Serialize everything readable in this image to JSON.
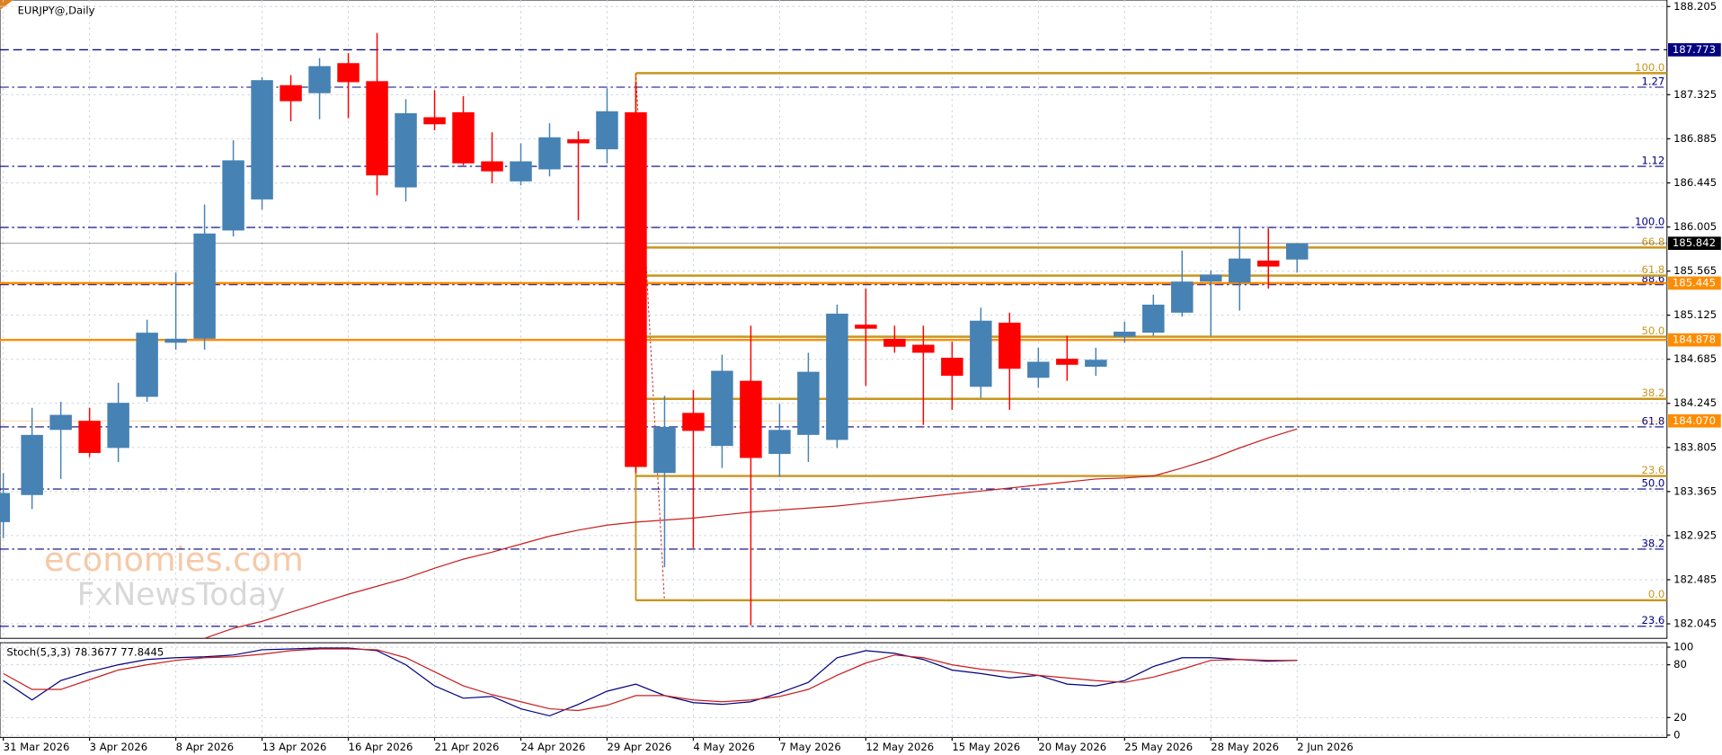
{
  "chart_data": {
    "type": "candlestick",
    "title": "EURJPY@,Daily",
    "categories": [
      "31 Mar 2026",
      null,
      null,
      "3 Apr 2026",
      null,
      null,
      "8 Apr 2026",
      null,
      null,
      "13 Apr 2026",
      null,
      null,
      "16 Apr 2026",
      null,
      null,
      "21 Apr 2026",
      null,
      null,
      "24 Apr 2026",
      null,
      null,
      "29 Apr 2026",
      null,
      null,
      "4 May 2026",
      null,
      null,
      "7 May 2026",
      null,
      null,
      "12 May 2026",
      null,
      null,
      "15 May 2026",
      null,
      null,
      "20 May 2026",
      null,
      null,
      "25 May 2026",
      null,
      null,
      "28 May 2026",
      null,
      null,
      "2 Jun 2026"
    ],
    "open": [
      183.06,
      183.33,
      183.98,
      184.07,
      183.8,
      184.31,
      184.85,
      184.89,
      185.97,
      186.28,
      187.42,
      187.34,
      187.64,
      187.46,
      186.4,
      187.1,
      187.15,
      186.66,
      186.46,
      186.58,
      186.88,
      186.78,
      187.15,
      183.55,
      184.15,
      183.82,
      184.47,
      183.74,
      183.93,
      183.88,
      185.03,
      184.89,
      184.83,
      184.7,
      184.41,
      185.05,
      184.5,
      184.69,
      184.61,
      184.91,
      184.95,
      185.15,
      185.46,
      185.45,
      185.67,
      185.68
    ],
    "high": [
      183.55,
      184.2,
      184.26,
      184.2,
      184.45,
      185.08,
      185.55,
      186.23,
      186.87,
      187.5,
      187.52,
      187.69,
      187.74,
      187.94,
      187.28,
      187.37,
      187.31,
      186.95,
      186.84,
      187.04,
      186.96,
      187.39,
      187.45,
      184.32,
      184.38,
      184.73,
      185.02,
      184.24,
      184.75,
      185.23,
      185.39,
      185.02,
      185.02,
      184.86,
      185.2,
      185.15,
      184.8,
      184.92,
      184.8,
      185.06,
      185.33,
      185.77,
      185.57,
      185.99,
      185.99,
      185.84
    ],
    "low": [
      182.9,
      183.19,
      183.49,
      183.71,
      183.66,
      184.26,
      184.78,
      184.78,
      185.91,
      186.18,
      187.06,
      187.08,
      187.09,
      186.32,
      186.26,
      186.97,
      186.62,
      186.44,
      186.42,
      186.51,
      186.07,
      186.64,
      183.55,
      182.61,
      182.8,
      183.6,
      182.03,
      183.51,
      183.66,
      183.8,
      184.42,
      184.75,
      184.03,
      184.18,
      184.3,
      184.18,
      184.4,
      184.47,
      184.52,
      184.85,
      184.92,
      185.11,
      184.92,
      185.17,
      185.39,
      185.55
    ],
    "close": [
      183.35,
      183.93,
      184.13,
      183.75,
      184.25,
      184.95,
      184.89,
      185.94,
      186.67,
      187.47,
      187.26,
      187.61,
      187.45,
      186.52,
      187.14,
      187.03,
      186.64,
      186.56,
      186.66,
      186.9,
      186.84,
      187.16,
      183.61,
      184.01,
      183.97,
      184.57,
      183.7,
      183.98,
      184.56,
      185.14,
      184.99,
      184.81,
      184.75,
      184.52,
      185.07,
      184.59,
      184.66,
      184.63,
      184.68,
      184.96,
      185.23,
      185.46,
      185.53,
      185.69,
      185.61,
      185.84
    ],
    "up_color": "#4682b4",
    "down_color": "#ff0000",
    "ma": {
      "color": "#c81e1e",
      "values": [
        null,
        null,
        null,
        null,
        null,
        null,
        null,
        181.9,
        182.0,
        182.07,
        182.16,
        182.25,
        182.34,
        182.42,
        182.5,
        182.6,
        182.69,
        182.76,
        182.84,
        182.92,
        182.98,
        183.03,
        183.06,
        183.08,
        183.1,
        183.13,
        183.16,
        183.18,
        183.2,
        183.22,
        183.25,
        183.28,
        183.31,
        183.34,
        183.37,
        183.4,
        183.43,
        183.46,
        183.49,
        183.5,
        183.52,
        183.6,
        183.69,
        183.8,
        183.9,
        183.99
      ]
    },
    "ylim": [
      181.9,
      188.27
    ],
    "yticks": [
      188.205,
      187.325,
      186.885,
      186.445,
      186.005,
      185.565,
      185.125,
      184.685,
      184.245,
      183.805,
      183.365,
      182.925,
      182.485,
      182.045
    ],
    "grid": true,
    "price_levels": [
      {
        "value": 187.773,
        "label": "187.773",
        "color": "#000080",
        "style": "dashed"
      },
      {
        "value": 185.842,
        "label": "185.842",
        "color": "#000000",
        "style": "thin"
      },
      {
        "value": 185.445,
        "label": "185.445",
        "color": "#ff8c00",
        "style": "solid"
      },
      {
        "value": 184.878,
        "label": "184.878",
        "color": "#ff8c00",
        "style": "solid"
      },
      {
        "value": 184.07,
        "label": "184.070",
        "color": "#ff8c00",
        "style": "thin"
      }
    ],
    "fib_navy": {
      "color": "#000080",
      "levels": [
        {
          "value": 187.4,
          "label": "1.27"
        },
        {
          "value": 186.61,
          "label": "1.12"
        },
        {
          "value": 186.0,
          "label": "100.0"
        },
        {
          "value": 185.43,
          "label": "88.6"
        },
        {
          "value": 184.01,
          "label": "61.8"
        },
        {
          "value": 183.39,
          "label": "50.0"
        },
        {
          "value": 182.79,
          "label": "38.2"
        },
        {
          "value": 182.02,
          "label": "23.6"
        }
      ]
    },
    "fib_gold": {
      "color": "#c8961e",
      "levels": [
        {
          "value": 187.54,
          "label": "100.0"
        },
        {
          "value": 185.8,
          "label": "66.8"
        },
        {
          "value": 185.52,
          "label": "61.8"
        },
        {
          "value": 184.91,
          "label": "50.0"
        },
        {
          "value": 184.29,
          "label": "38.2"
        },
        {
          "value": 183.52,
          "label": "23.6"
        },
        {
          "value": 182.28,
          "label": "0.0"
        }
      ]
    },
    "watermark": [
      "economies.com",
      "FxNewsToday"
    ],
    "stochastic": {
      "title": "Stoch(5,3,3) 78.3677 77.8445",
      "ylim": [
        0,
        100
      ],
      "yticks": [
        100,
        80,
        20,
        0
      ],
      "series": [
        {
          "color": "#000080",
          "values": [
            62,
            40,
            62,
            72,
            80,
            86,
            88,
            89,
            91,
            97,
            98,
            99,
            99,
            96,
            80,
            56,
            42,
            44,
            30,
            22,
            35,
            50,
            58,
            45,
            37,
            35,
            38,
            48,
            60,
            88,
            96,
            93,
            86,
            74,
            70,
            65,
            68,
            58,
            56,
            62,
            78,
            88,
            88,
            86,
            84,
            85
          ]
        },
        {
          "color": "#c81e1e",
          "values": [
            70,
            52,
            52,
            63,
            74,
            80,
            85,
            88,
            89,
            92,
            96,
            98,
            98,
            97,
            88,
            72,
            56,
            46,
            38,
            30,
            28,
            34,
            45,
            45,
            40,
            38,
            40,
            44,
            52,
            68,
            82,
            91,
            88,
            80,
            75,
            72,
            68,
            65,
            62,
            60,
            66,
            75,
            85,
            86,
            85,
            85
          ]
        }
      ]
    }
  }
}
